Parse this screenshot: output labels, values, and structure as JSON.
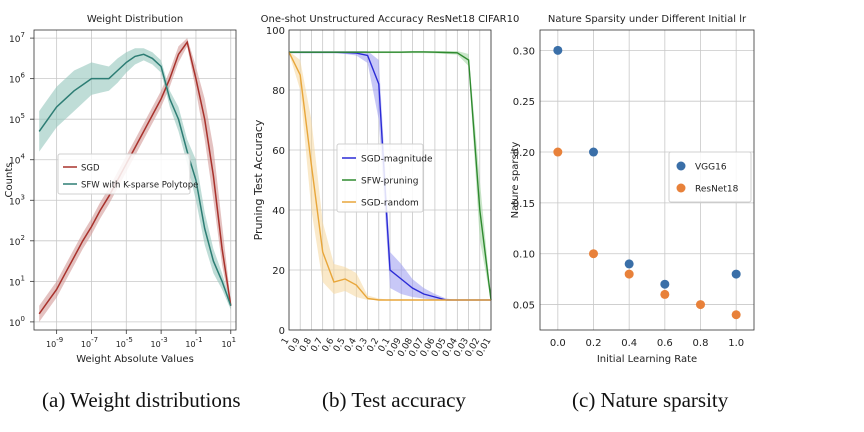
{
  "captions": {
    "a": "(a) Weight distributions",
    "b": "(b) Test accuracy",
    "c": "(c) Nature sparsity"
  },
  "chart_data": [
    {
      "type": "line",
      "title": "Weight Distribution",
      "xlabel": "Weight Absolute Values",
      "ylabel": "Counts",
      "xscale": "log",
      "yscale": "log",
      "x_ticks": [
        "10^-9",
        "10^-7",
        "10^-5",
        "10^-3",
        "10^-1",
        "10^1"
      ],
      "y_ticks": [
        "10^0",
        "10^1",
        "10^2",
        "10^3",
        "10^4",
        "10^5",
        "10^6",
        "10^7"
      ],
      "xlim_exp": [
        -10.3,
        1.3
      ],
      "ylim_exp": [
        -0.2,
        7.2
      ],
      "grid": true,
      "legend_position": "center-left",
      "series": [
        {
          "name": "SGD",
          "color": "#a8322c",
          "band_color": "#d29a98",
          "x_exp": [
            -10,
            -9.5,
            -9,
            -8.5,
            -8,
            -7.5,
            -7,
            -6.5,
            -6,
            -5.5,
            -5,
            -4.5,
            -4,
            -3.5,
            -3,
            -2.5,
            -2,
            -1.5,
            -1,
            -0.5,
            0,
            0.5,
            1
          ],
          "y_exp": [
            0.2,
            0.5,
            0.8,
            1.2,
            1.6,
            2.0,
            2.35,
            2.75,
            3.1,
            3.5,
            3.9,
            4.3,
            4.7,
            5.1,
            5.5,
            6.0,
            6.6,
            6.9,
            6.0,
            5.0,
            3.6,
            1.8,
            0.4
          ],
          "y_lo": [
            0.0,
            0.3,
            0.6,
            1.0,
            1.4,
            1.8,
            2.15,
            2.55,
            2.9,
            3.3,
            3.7,
            4.1,
            4.5,
            4.9,
            5.3,
            5.8,
            6.4,
            6.8,
            5.7,
            4.5,
            3.0,
            1.4,
            0.3
          ],
          "y_hi": [
            0.4,
            0.7,
            1.0,
            1.4,
            1.8,
            2.2,
            2.55,
            2.95,
            3.3,
            3.7,
            4.1,
            4.5,
            4.9,
            5.3,
            5.7,
            6.2,
            6.8,
            7.0,
            6.3,
            5.5,
            4.3,
            2.4,
            0.5
          ]
        },
        {
          "name": "SFW with K-sparse Polytope",
          "color": "#2d7d74",
          "band_color": "#94c7bd",
          "x_exp": [
            -10,
            -9.5,
            -9,
            -8.5,
            -8,
            -7.5,
            -7,
            -6.5,
            -6,
            -5.5,
            -5,
            -4.5,
            -4,
            -3.5,
            -3,
            -2.5,
            -2,
            -1.5,
            -1,
            -0.5,
            0,
            0.5,
            1
          ],
          "y_exp": [
            4.7,
            5.0,
            5.3,
            5.5,
            5.7,
            5.85,
            6.0,
            6.0,
            6.0,
            6.2,
            6.4,
            6.55,
            6.6,
            6.5,
            6.3,
            5.5,
            5.0,
            4.2,
            3.5,
            2.3,
            1.5,
            1.0,
            0.4
          ],
          "y_lo": [
            4.2,
            4.5,
            4.8,
            5.0,
            5.2,
            5.4,
            5.6,
            5.65,
            5.7,
            5.9,
            6.15,
            6.35,
            6.45,
            6.35,
            6.15,
            5.3,
            4.7,
            3.9,
            3.0,
            1.9,
            1.2,
            0.8,
            0.3
          ],
          "y_hi": [
            5.2,
            5.5,
            5.8,
            6.0,
            6.2,
            6.3,
            6.4,
            6.35,
            6.3,
            6.5,
            6.65,
            6.75,
            6.75,
            6.65,
            6.45,
            5.7,
            5.3,
            4.5,
            4.0,
            2.7,
            1.8,
            1.2,
            0.5
          ]
        }
      ]
    },
    {
      "type": "line",
      "title": "One-shot Unstructured Accuracy ResNet18 CIFAR10",
      "xlabel": "",
      "ylabel": "Pruning Test Accuracy",
      "categories": [
        "1",
        "0.9",
        "0.8",
        "0.7",
        "0.6",
        "0.5",
        "0.4",
        "0.3",
        "0.2",
        "0.1",
        "0.09",
        "0.08",
        "0.07",
        "0.06",
        "0.05",
        "0.04",
        "0.03",
        "0.02",
        "0.01"
      ],
      "ylim": [
        0,
        100
      ],
      "y_ticks": [
        0,
        20,
        40,
        60,
        80,
        100
      ],
      "grid": true,
      "legend_position": "center",
      "series": [
        {
          "name": "SGD-magnitude",
          "color": "#2b2bd6",
          "band_color": "#9b9bf0",
          "values": [
            92.6,
            92.6,
            92.6,
            92.6,
            92.6,
            92.5,
            92.3,
            91.5,
            82,
            20,
            17,
            14,
            12,
            11,
            10,
            10,
            10,
            10,
            10
          ],
          "lo": [
            92.2,
            92.2,
            92.2,
            92.2,
            92.2,
            92.0,
            91.5,
            89.0,
            70,
            14,
            12,
            11,
            10.5,
            10,
            10,
            10,
            10,
            10,
            10
          ],
          "hi": [
            93.0,
            93.0,
            93.0,
            93.0,
            93.0,
            93.0,
            93.0,
            93.0,
            90,
            26,
            22,
            17,
            14,
            12,
            10.5,
            10,
            10,
            10,
            10
          ]
        },
        {
          "name": "SFW-pruning",
          "color": "#2f8a2f",
          "band_color": "#9fd49f",
          "values": [
            92.6,
            92.6,
            92.6,
            92.6,
            92.6,
            92.6,
            92.6,
            92.6,
            92.6,
            92.6,
            92.6,
            92.7,
            92.7,
            92.6,
            92.5,
            92.4,
            90.0,
            40.0,
            10.0
          ],
          "lo": [
            92.3,
            92.3,
            92.3,
            92.3,
            92.3,
            92.3,
            92.3,
            92.3,
            92.3,
            92.3,
            92.3,
            92.3,
            92.3,
            92.2,
            92.0,
            91.8,
            88.0,
            30.0,
            9.5
          ],
          "hi": [
            92.9,
            92.9,
            92.9,
            92.9,
            92.9,
            92.9,
            92.9,
            92.9,
            92.9,
            92.9,
            92.9,
            93.0,
            93.0,
            93.0,
            93.0,
            93.0,
            92.0,
            50.0,
            10.5
          ]
        },
        {
          "name": "SGD-random",
          "color": "#e8a63a",
          "band_color": "#f6d79c",
          "values": [
            92.6,
            85,
            55,
            26,
            16,
            17,
            15,
            10.5,
            10,
            10,
            10,
            10,
            10,
            10,
            10,
            10,
            10,
            10,
            10
          ],
          "lo": [
            92.3,
            80,
            40,
            16,
            12,
            13,
            11,
            10,
            10,
            10,
            10,
            10,
            10,
            10,
            10,
            10,
            10,
            10,
            10
          ],
          "hi": [
            92.9,
            90,
            70,
            36,
            22,
            21,
            19,
            11.5,
            10.5,
            10,
            10,
            10,
            10,
            10,
            10,
            10,
            10,
            10,
            10
          ]
        }
      ]
    },
    {
      "type": "scatter",
      "title": "Nature Sparsity under Different Initial lr",
      "xlabel": "Initial Learning Rate",
      "ylabel": "Nature sparsity",
      "xlim": [
        -0.1,
        1.1
      ],
      "ylim": [
        0.025,
        0.32
      ],
      "x_ticks": [
        0.0,
        0.2,
        0.4,
        0.6,
        0.8,
        1.0
      ],
      "y_ticks": [
        0.05,
        0.1,
        0.15,
        0.2,
        0.25,
        0.3
      ],
      "grid": true,
      "legend_position": "center-right",
      "series": [
        {
          "name": "VGG16",
          "color": "#3a6fa8",
          "x": [
            0.0,
            0.2,
            0.4,
            0.6,
            1.0
          ],
          "y": [
            0.3,
            0.2,
            0.09,
            0.07,
            0.08
          ]
        },
        {
          "name": "ResNet18",
          "color": "#e8813a",
          "x": [
            0.0,
            0.2,
            0.4,
            0.6,
            0.8,
            1.0
          ],
          "y": [
            0.2,
            0.1,
            0.08,
            0.06,
            0.05,
            0.04
          ]
        }
      ]
    }
  ]
}
